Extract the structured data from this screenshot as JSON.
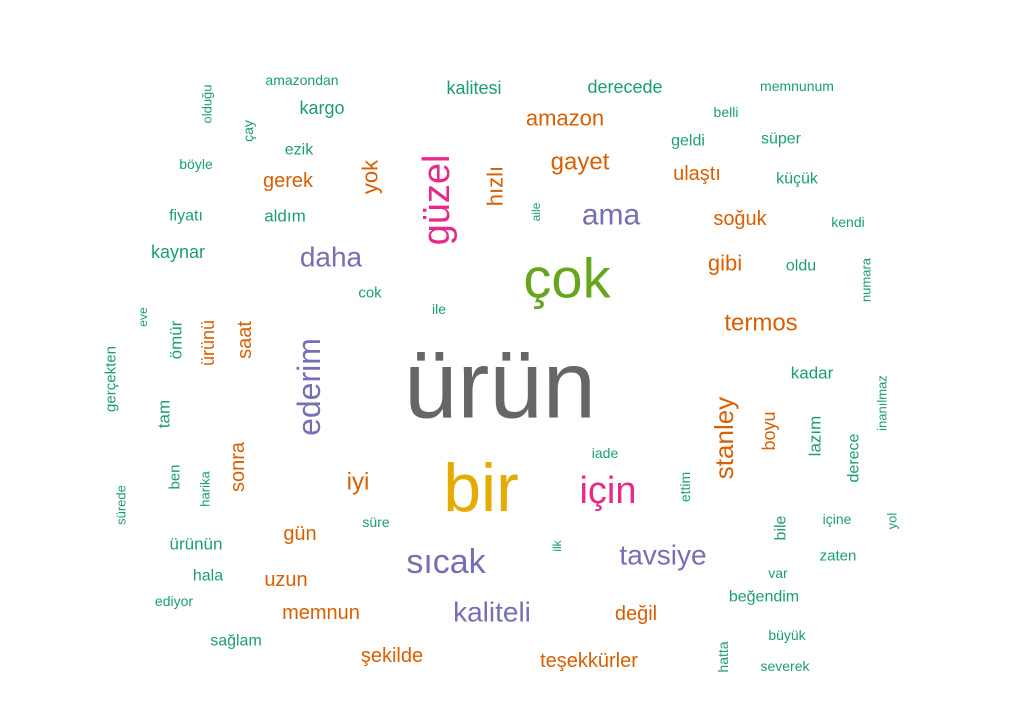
{
  "chart_data": {
    "type": "wordcloud",
    "colors": {
      "gray": "#666666",
      "teal": "#1b9e77",
      "orange": "#d95f02",
      "purple": "#7570b3",
      "magenta": "#e7298a",
      "green": "#66a61e",
      "gold": "#e6ab02"
    },
    "words": [
      {
        "text": "ürün",
        "color": "gray"
      },
      {
        "text": "bir",
        "color": "gold"
      },
      {
        "text": "çok",
        "color": "green"
      },
      {
        "text": "güzel",
        "color": "magenta"
      },
      {
        "text": "için",
        "color": "magenta"
      },
      {
        "text": "ederim",
        "color": "purple"
      },
      {
        "text": "sıcak",
        "color": "purple"
      },
      {
        "text": "ama",
        "color": "purple"
      },
      {
        "text": "daha",
        "color": "purple"
      },
      {
        "text": "tavsiye",
        "color": "purple"
      },
      {
        "text": "kaliteli",
        "color": "purple"
      },
      {
        "text": "stanley",
        "color": "orange"
      },
      {
        "text": "termos",
        "color": "orange"
      },
      {
        "text": "gayet",
        "color": "orange"
      },
      {
        "text": "amazon",
        "color": "orange"
      },
      {
        "text": "hızlı",
        "color": "orange"
      },
      {
        "text": "yok",
        "color": "orange"
      },
      {
        "text": "iyi",
        "color": "orange"
      },
      {
        "text": "gibi",
        "color": "orange"
      },
      {
        "text": "soğuk",
        "color": "orange"
      },
      {
        "text": "ulaştı",
        "color": "orange"
      },
      {
        "text": "gerek",
        "color": "orange"
      },
      {
        "text": "saat",
        "color": "orange"
      },
      {
        "text": "sonra",
        "color": "orange"
      },
      {
        "text": "gün",
        "color": "orange"
      },
      {
        "text": "uzun",
        "color": "orange"
      },
      {
        "text": "memnun",
        "color": "orange"
      },
      {
        "text": "şekilde",
        "color": "orange"
      },
      {
        "text": "teşekkürler",
        "color": "orange"
      },
      {
        "text": "değil",
        "color": "orange"
      },
      {
        "text": "boyu",
        "color": "orange"
      },
      {
        "text": "ürünü",
        "color": "orange"
      },
      {
        "text": "derecede",
        "color": "teal"
      },
      {
        "text": "kalitesi",
        "color": "teal"
      },
      {
        "text": "kargo",
        "color": "teal"
      },
      {
        "text": "amazondan",
        "color": "teal"
      },
      {
        "text": "memnunum",
        "color": "teal"
      },
      {
        "text": "belli",
        "color": "teal"
      },
      {
        "text": "geldi",
        "color": "teal"
      },
      {
        "text": "süper",
        "color": "teal"
      },
      {
        "text": "küçük",
        "color": "teal"
      },
      {
        "text": "kendi",
        "color": "teal"
      },
      {
        "text": "oldu",
        "color": "teal"
      },
      {
        "text": "numara",
        "color": "teal"
      },
      {
        "text": "kadar",
        "color": "teal"
      },
      {
        "text": "lazım",
        "color": "teal"
      },
      {
        "text": "derece",
        "color": "teal"
      },
      {
        "text": "inanılmaz",
        "color": "teal"
      },
      {
        "text": "yol",
        "color": "teal"
      },
      {
        "text": "içine",
        "color": "teal"
      },
      {
        "text": "bile",
        "color": "teal"
      },
      {
        "text": "zaten",
        "color": "teal"
      },
      {
        "text": "var",
        "color": "teal"
      },
      {
        "text": "beğendim",
        "color": "teal"
      },
      {
        "text": "büyük",
        "color": "teal"
      },
      {
        "text": "severek",
        "color": "teal"
      },
      {
        "text": "hatta",
        "color": "teal"
      },
      {
        "text": "ettim",
        "color": "teal"
      },
      {
        "text": "iade",
        "color": "teal"
      },
      {
        "text": "ilk",
        "color": "teal"
      },
      {
        "text": "süre",
        "color": "teal"
      },
      {
        "text": "ile",
        "color": "teal"
      },
      {
        "text": "aile",
        "color": "teal"
      },
      {
        "text": "cok",
        "color": "teal"
      },
      {
        "text": "aldım",
        "color": "teal"
      },
      {
        "text": "ezik",
        "color": "teal"
      },
      {
        "text": "çay",
        "color": "teal"
      },
      {
        "text": "olduğu",
        "color": "teal"
      },
      {
        "text": "böyle",
        "color": "teal"
      },
      {
        "text": "fiyatı",
        "color": "teal"
      },
      {
        "text": "kaynar",
        "color": "teal"
      },
      {
        "text": "eve",
        "color": "teal"
      },
      {
        "text": "ömür",
        "color": "teal"
      },
      {
        "text": "gerçekten",
        "color": "teal"
      },
      {
        "text": "tam",
        "color": "teal"
      },
      {
        "text": "ben",
        "color": "teal"
      },
      {
        "text": "harika",
        "color": "teal"
      },
      {
        "text": "sürede",
        "color": "teal"
      },
      {
        "text": "ürünün",
        "color": "teal"
      },
      {
        "text": "hala",
        "color": "teal"
      },
      {
        "text": "ediyor",
        "color": "teal"
      },
      {
        "text": "sağlam",
        "color": "teal"
      }
    ]
  }
}
